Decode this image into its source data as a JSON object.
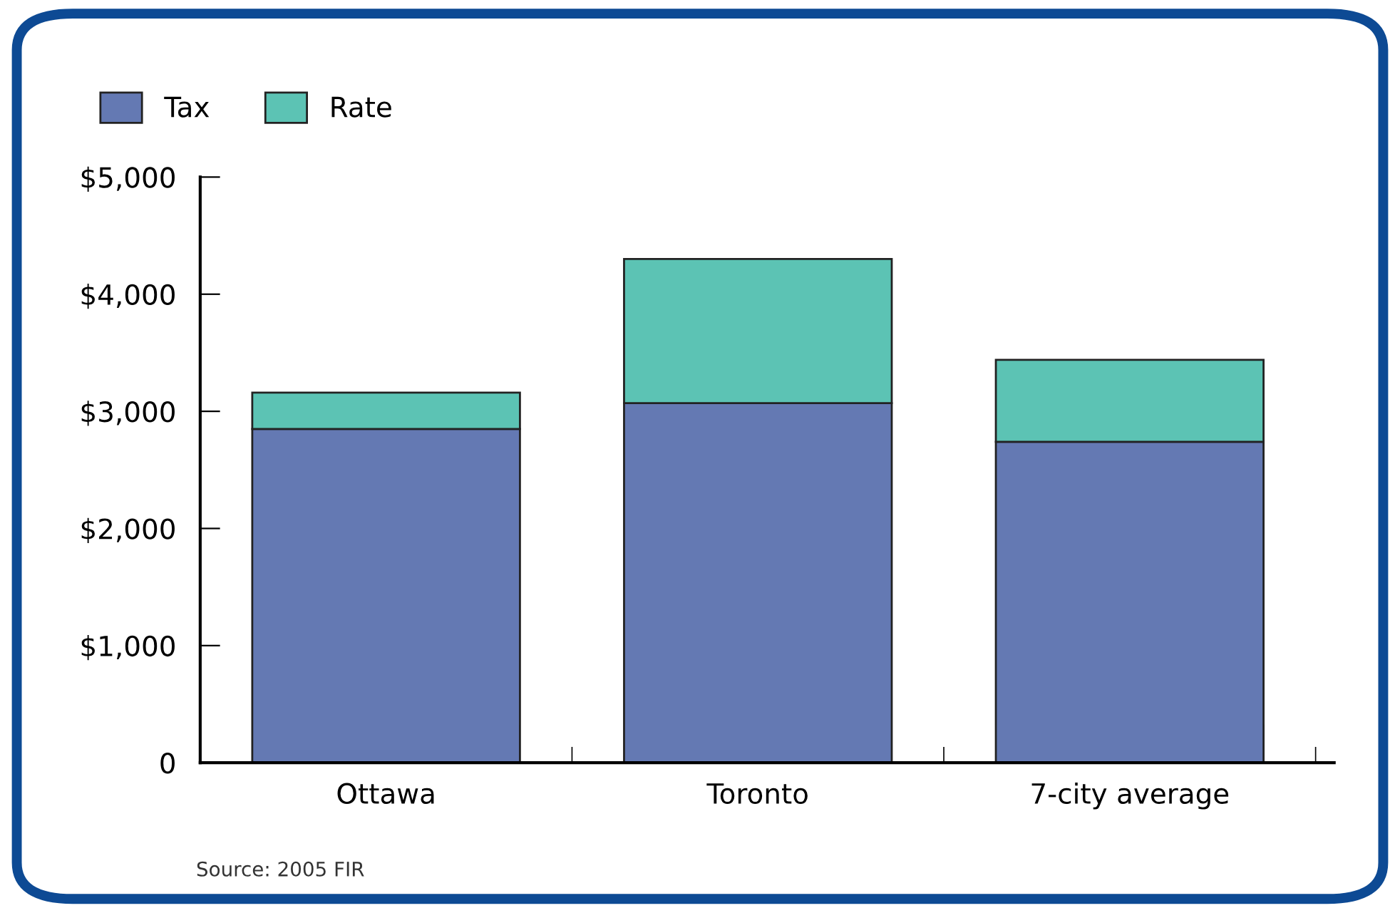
{
  "chart_data": {
    "type": "bar",
    "stacked": true,
    "categories": [
      "Ottawa",
      "Toronto",
      "7-city average"
    ],
    "series": [
      {
        "name": "Tax",
        "color": "#6479b3",
        "values": [
          2850,
          3070,
          2740
        ]
      },
      {
        "name": "Rate",
        "color": "#5cc3b4",
        "values": [
          310,
          1230,
          700
        ]
      }
    ],
    "ylim": [
      0,
      5000
    ],
    "yticks": [
      {
        "value": 0,
        "label": "0"
      },
      {
        "value": 1000,
        "label": "$1,000"
      },
      {
        "value": 2000,
        "label": "$2,000"
      },
      {
        "value": 3000,
        "label": "$3,000"
      },
      {
        "value": 4000,
        "label": "$4,000"
      },
      {
        "value": 5000,
        "label": "$5,000"
      }
    ],
    "grid": false,
    "legend": "top left",
    "annotations": [
      "Source: 2005 FIR"
    ]
  }
}
